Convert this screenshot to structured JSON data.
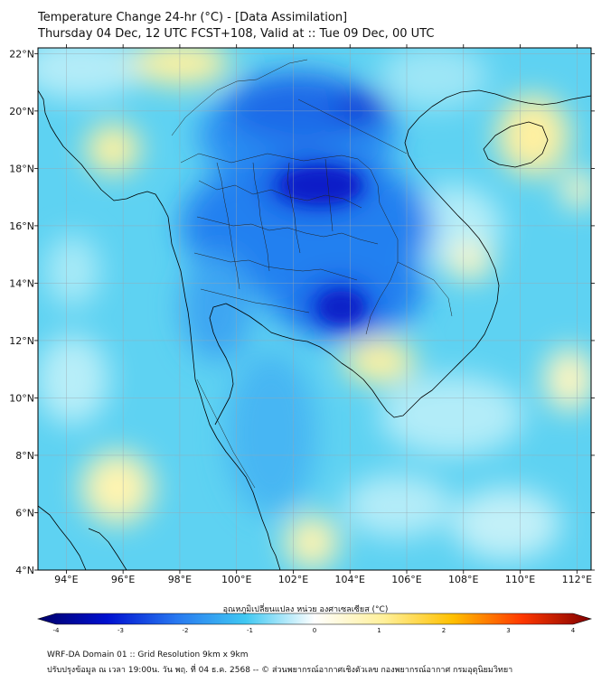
{
  "header": {
    "title": "Temperature Change 24-hr (°C) - [Data Assimilation]",
    "subtitle": "Thursday 04 Dec, 12 UTC FCST+108, Valid at :: Tue 09 Dec, 00 UTC"
  },
  "map": {
    "lon_range": [
      93,
      112.5
    ],
    "lat_range": [
      4,
      22.2
    ],
    "lon_ticks": [
      {
        "value": 94,
        "label": "94°E"
      },
      {
        "value": 96,
        "label": "96°E"
      },
      {
        "value": 98,
        "label": "98°E"
      },
      {
        "value": 100,
        "label": "100°E"
      },
      {
        "value": 102,
        "label": "102°E"
      },
      {
        "value": 104,
        "label": "104°E"
      },
      {
        "value": 106,
        "label": "106°E"
      },
      {
        "value": 108,
        "label": "108°E"
      },
      {
        "value": 110,
        "label": "110°E"
      },
      {
        "value": 112,
        "label": "112°E"
      }
    ],
    "lat_ticks": [
      {
        "value": 4,
        "label": "4°N"
      },
      {
        "value": 6,
        "label": "6°N"
      },
      {
        "value": 8,
        "label": "8°N"
      },
      {
        "value": 10,
        "label": "10°N"
      },
      {
        "value": 12,
        "label": "12°N"
      },
      {
        "value": 14,
        "label": "14°N"
      },
      {
        "value": 16,
        "label": "16°N"
      },
      {
        "value": 18,
        "label": "18°N"
      },
      {
        "value": 20,
        "label": "20°N"
      },
      {
        "value": 22,
        "label": "22°N"
      }
    ],
    "background_color": "#5ed2f2"
  },
  "colorbar": {
    "title": "อุณหภูมิเปลี่ยนแปลง หน่วย องศาเซลเซียส (°C)",
    "min": -4,
    "max": 4,
    "tick_labels": [
      "-4",
      "-3",
      "-2",
      "-1",
      "0",
      "1",
      "2",
      "3",
      "4"
    ],
    "colors": [
      "#00006a",
      "#0010d0",
      "#2878f0",
      "#40c8f2",
      "#ffffff",
      "#fff09a",
      "#ffc000",
      "#ff3800",
      "#800000"
    ]
  },
  "footer": {
    "line1": "WRF-DA Domain 01 :: Grid Resolution 9km x 9km",
    "line2": "ปรับปรุงข้อมูล ณ เวลา 19:00น. วัน พฤ. ที่ 04 ธ.ค. 2568 -- © ส่วนพยากรณ์อากาศเชิงตัวเลข กองพยากรณ์อากาศ กรมอุตุนิยมวิทยา"
  }
}
